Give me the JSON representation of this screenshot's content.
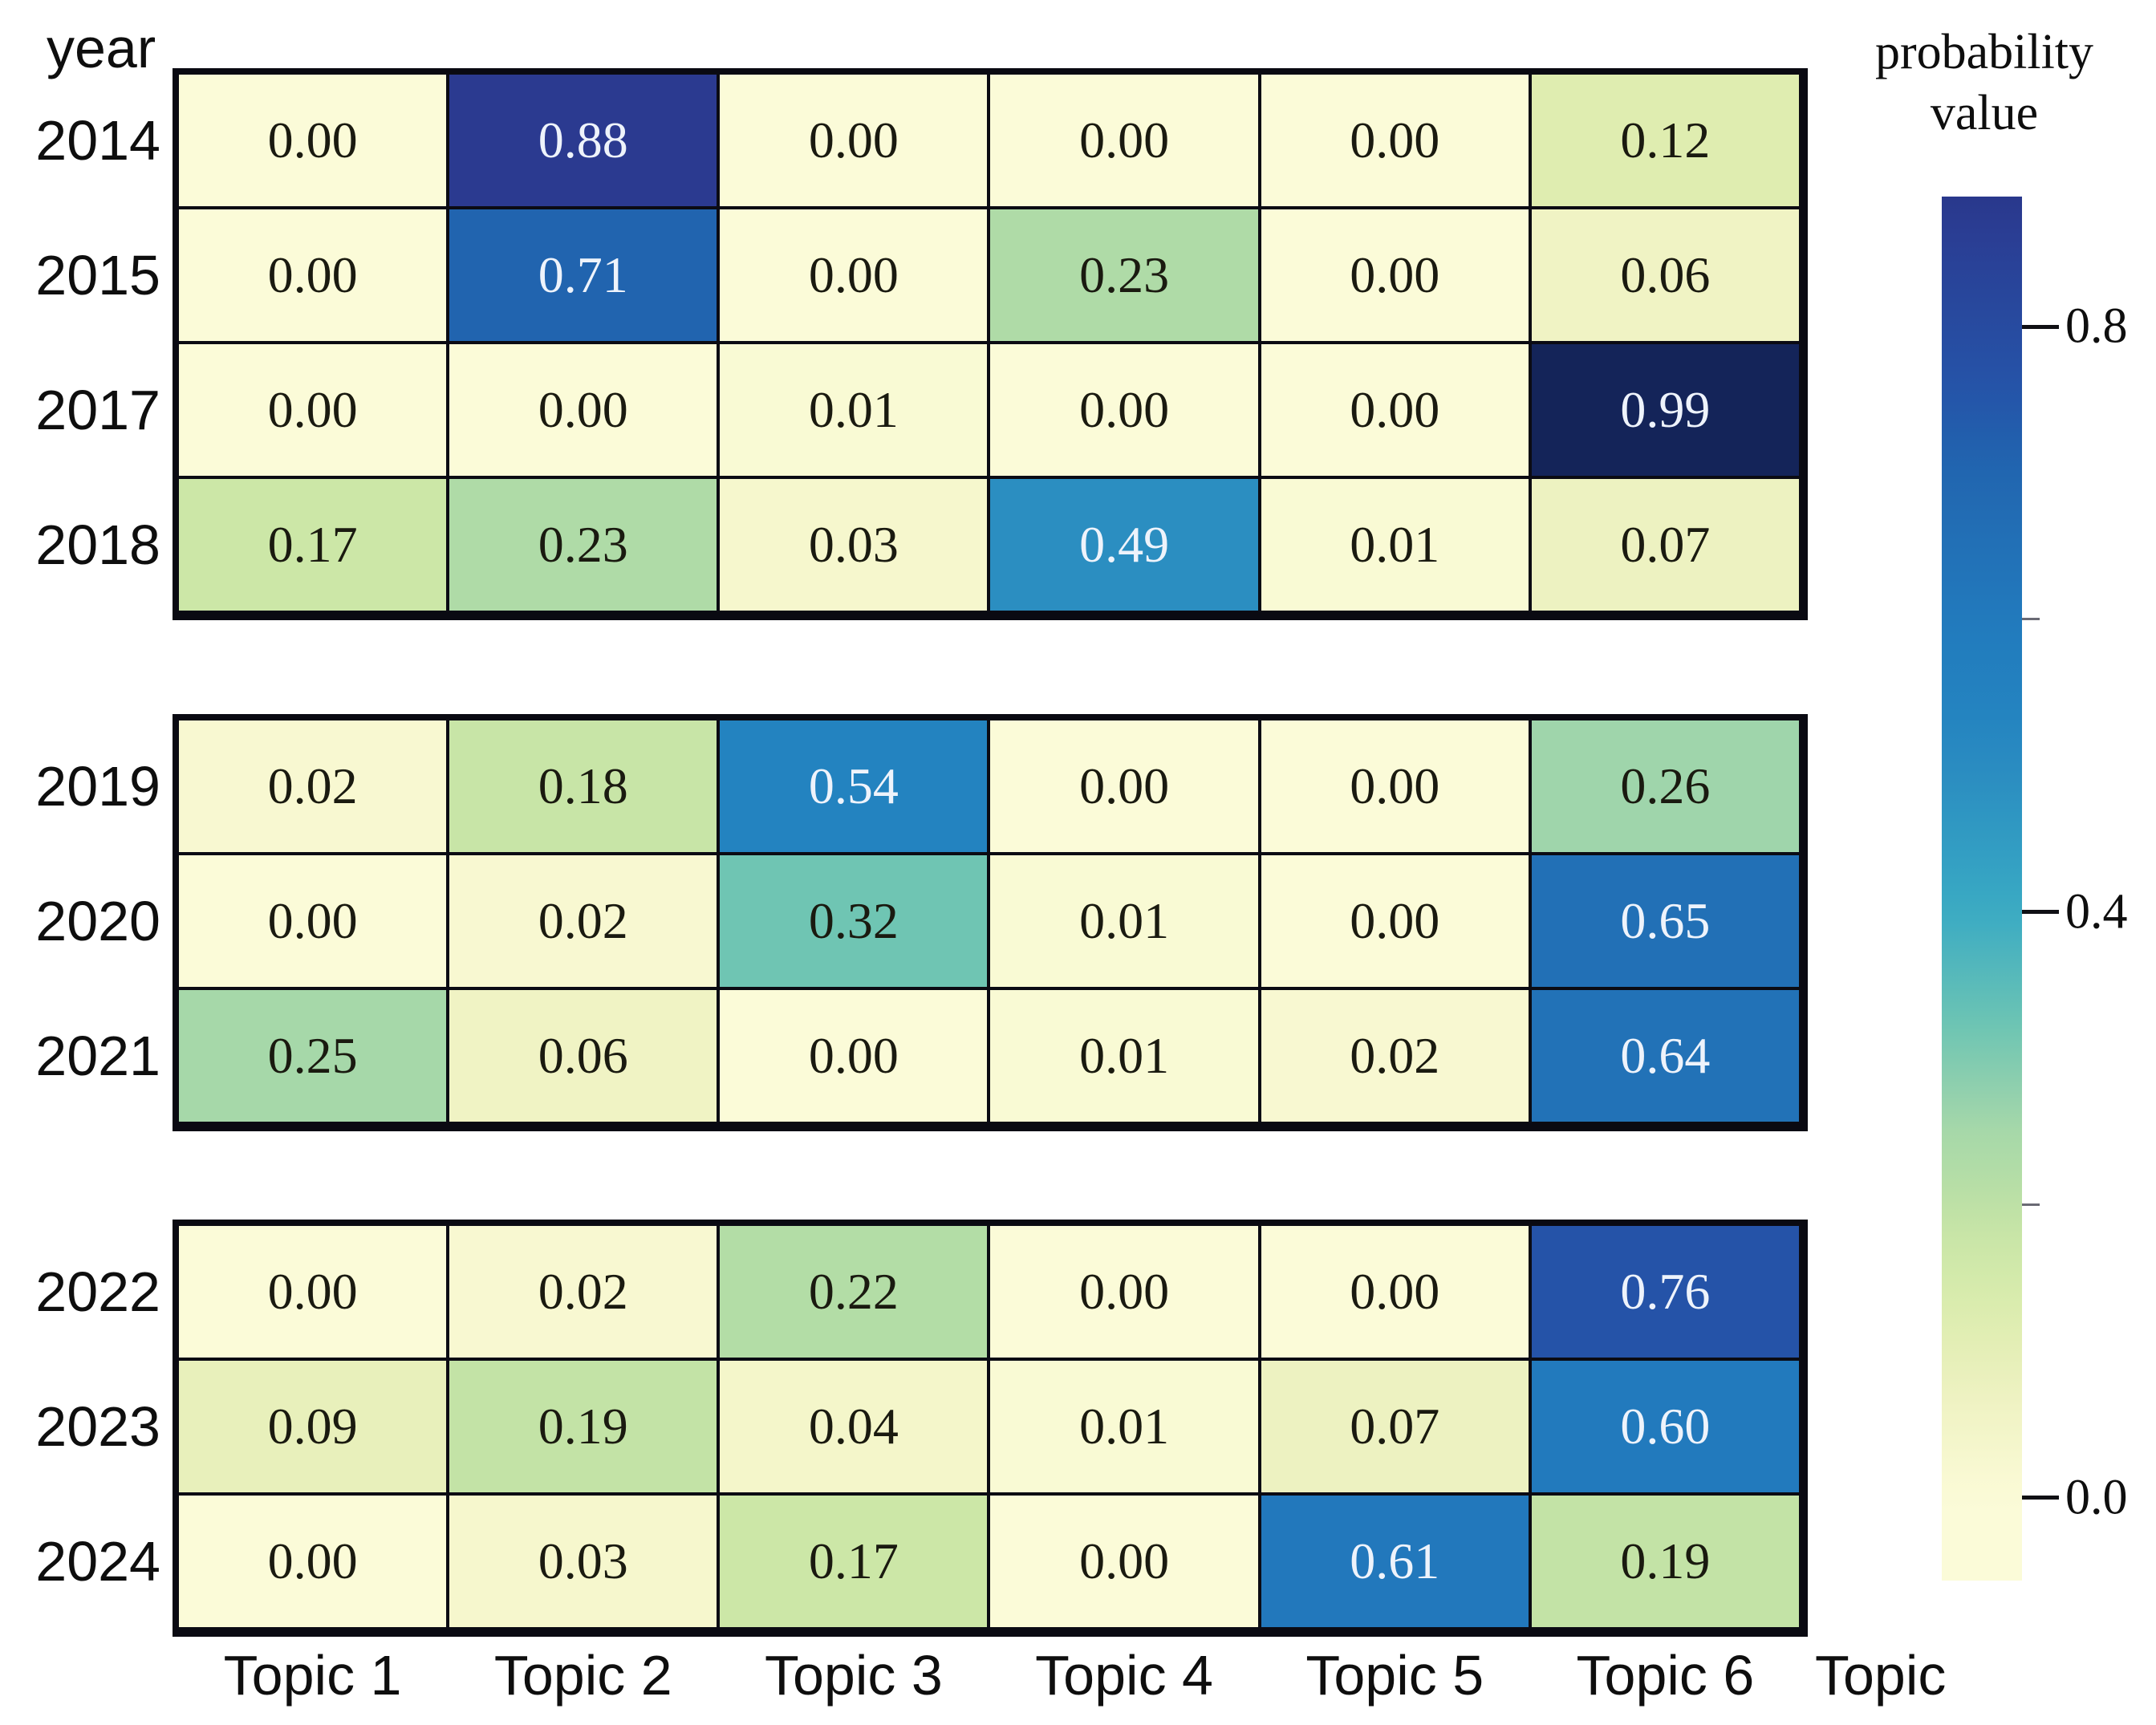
{
  "figure": {
    "y_axis_title": "year",
    "x_axis_title": "Topic",
    "colorbar_title_line1": "probability",
    "colorbar_title_line2": "value"
  },
  "colors": {
    "background": "#ffffff",
    "grid_border": "#0a0a12",
    "cell_text_dark": "#1a1a10",
    "cell_text_light": "#eef3fb",
    "colormap_stops": [
      [
        0.0,
        "#fbfbd8"
      ],
      [
        0.03,
        "#f6f7cd"
      ],
      [
        0.06,
        "#f0f3c4"
      ],
      [
        0.09,
        "#e8f0bb"
      ],
      [
        0.12,
        "#dfedb0"
      ],
      [
        0.17,
        "#cce7a7"
      ],
      [
        0.19,
        "#c3e3a6"
      ],
      [
        0.22,
        "#b3dda6"
      ],
      [
        0.25,
        "#a6d8a9"
      ],
      [
        0.26,
        "#9fd5ab"
      ],
      [
        0.32,
        "#6fc5b3"
      ],
      [
        0.4,
        "#3aabc4"
      ],
      [
        0.49,
        "#2b8ec1"
      ],
      [
        0.54,
        "#2383c0"
      ],
      [
        0.6,
        "#227abd"
      ],
      [
        0.65,
        "#2270b6"
      ],
      [
        0.71,
        "#2164af"
      ],
      [
        0.76,
        "#2553a8"
      ],
      [
        0.88,
        "#2b3a90"
      ],
      [
        0.99,
        "#142459"
      ],
      [
        1.0,
        "#112055"
      ]
    ]
  },
  "chart_data": {
    "type": "heatmap",
    "title": "",
    "xlabel": "Topic",
    "ylabel": "year",
    "x_categories": [
      "Topic 1",
      "Topic 2",
      "Topic 3",
      "Topic 4",
      "Topic 5",
      "Topic 6"
    ],
    "colormap": "YlGnBu",
    "value_range": [
      0.0,
      1.0
    ],
    "colorbar": {
      "title": "probability value",
      "tick_labels": [
        "0.8",
        "0.4",
        "0.0"
      ],
      "minor_tick_values": [
        0.6,
        0.2
      ]
    },
    "row_groups": [
      {
        "years": [
          "2014",
          "2015",
          "2017",
          "2018"
        ],
        "values": [
          [
            0.0,
            0.88,
            0.0,
            0.0,
            0.0,
            0.12
          ],
          [
            0.0,
            0.71,
            0.0,
            0.23,
            0.0,
            0.06
          ],
          [
            0.0,
            0.0,
            0.01,
            0.0,
            0.0,
            0.99
          ],
          [
            0.17,
            0.23,
            0.03,
            0.49,
            0.01,
            0.07
          ]
        ]
      },
      {
        "years": [
          "2019",
          "2020",
          "2021"
        ],
        "values": [
          [
            0.02,
            0.18,
            0.54,
            0.0,
            0.0,
            0.26
          ],
          [
            0.0,
            0.02,
            0.32,
            0.01,
            0.0,
            0.65
          ],
          [
            0.25,
            0.06,
            0.0,
            0.01,
            0.02,
            0.64
          ]
        ]
      },
      {
        "years": [
          "2022",
          "2023",
          "2024"
        ],
        "values": [
          [
            0.0,
            0.02,
            0.22,
            0.0,
            0.0,
            0.76
          ],
          [
            0.09,
            0.19,
            0.04,
            0.01,
            0.07,
            0.6
          ],
          [
            0.0,
            0.03,
            0.17,
            0.0,
            0.61,
            0.19
          ]
        ]
      }
    ]
  }
}
